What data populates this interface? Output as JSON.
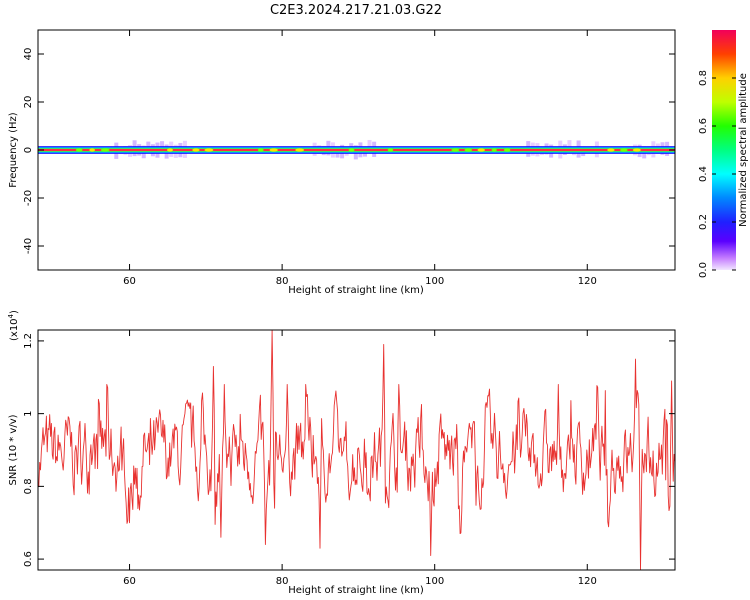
{
  "figure_title": "C2E3.2024.217.21.03.G22",
  "colors": {
    "snr_line": "#e8312f",
    "spectral_band": "#e8284a",
    "axes": "#000000"
  },
  "chart_data": [
    {
      "type": "heatmap",
      "xlabel": "Height of straight line (km)",
      "ylabel": "Frequency (Hz)",
      "xlim": [
        48,
        131.5
      ],
      "ylim": [
        -50,
        50
      ],
      "x_ticks": [
        60,
        80,
        100,
        120
      ],
      "y_ticks": [
        -40,
        -20,
        0,
        20,
        40
      ],
      "grid": false,
      "colorbar": {
        "label": "Normalized spectral amplitude",
        "range": [
          0,
          1
        ],
        "ticks": [
          0.0,
          0.2,
          0.4,
          0.6,
          0.8
        ],
        "colormap": "rainbow (magenta-white at 0 to red at 1)"
      },
      "band": {
        "center_hz": 0,
        "core_halfwidth_hz": 1,
        "spread_segments_km": [
          [
            58,
            67
          ],
          [
            84,
            92
          ],
          [
            112,
            121
          ],
          [
            126,
            131
          ]
        ]
      }
    },
    {
      "type": "line",
      "xlabel": "Height of straight line (km)",
      "ylabel": "SNR (10 * v/v)",
      "y_multiplier": "(x10",
      "y_multiplier_exp": "4",
      "y_multiplier_close": ")",
      "xlim": [
        48,
        131.5
      ],
      "ylim": [
        0.57,
        1.23
      ],
      "x_ticks": [
        60,
        80,
        100,
        120
      ],
      "y_ticks": [
        0.6,
        0.8,
        1.0,
        1.2
      ],
      "grid": false,
      "series": [
        {
          "color": "#e8312f",
          "peaks": [
            {
              "x": 71.0,
              "y": 1.13
            },
            {
              "x": 78.7,
              "y": 1.23
            },
            {
              "x": 93.3,
              "y": 1.19
            },
            {
              "x": 126.3,
              "y": 1.15
            },
            {
              "x": 131.0,
              "y": 1.09
            }
          ],
          "troughs": [
            {
              "x": 72.0,
              "y": 0.66
            },
            {
              "x": 77.8,
              "y": 0.64
            },
            {
              "x": 85.0,
              "y": 0.63
            },
            {
              "x": 99.5,
              "y": 0.61
            },
            {
              "x": 127.0,
              "y": 0.57
            }
          ],
          "typical_range": [
            0.75,
            1.02
          ]
        }
      ]
    }
  ]
}
